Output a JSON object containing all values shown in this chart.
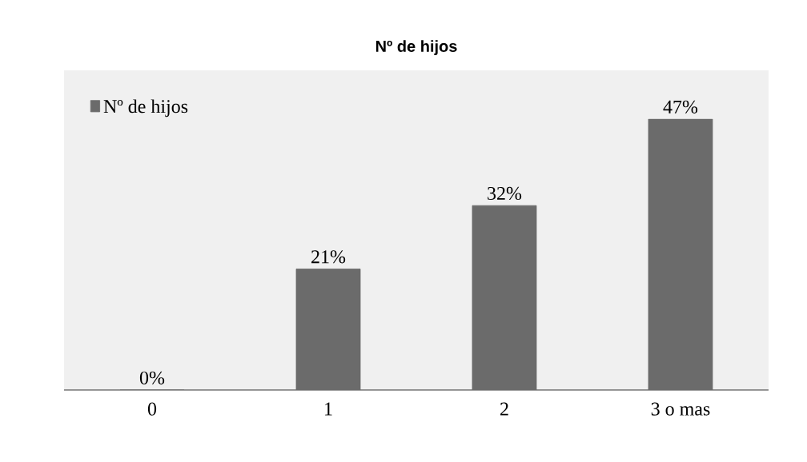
{
  "chart_data": {
    "type": "bar",
    "title": "Nº de hijos",
    "categories": [
      "0",
      "1",
      "2",
      "3 o mas"
    ],
    "series": [
      {
        "name": "Nº de hijos",
        "color": "#6b6b6b",
        "values": [
          0,
          21,
          32,
          47
        ],
        "value_labels": [
          "0%",
          "21%",
          "32%",
          "47%"
        ]
      }
    ],
    "legend": "top left"
  }
}
